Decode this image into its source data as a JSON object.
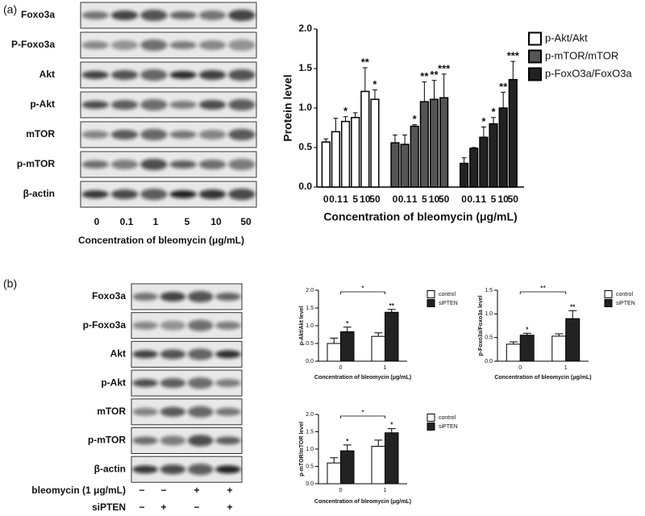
{
  "panel_a": {
    "label": "(a)",
    "blot_labels": [
      "Foxo3a",
      "P-Foxo3a",
      "Akt",
      "p-Akt",
      "mTOR",
      "p-mTOR",
      "β-actin"
    ],
    "lanes": [
      "0",
      "0.1",
      "1",
      "5",
      "10",
      "50"
    ],
    "x_label": "Concentration of bleomycin (μg/mL)"
  },
  "panel_b": {
    "label": "(b)",
    "blot_labels": [
      "Foxo3a",
      "p-Foxo3a",
      "Akt",
      "p-Akt",
      "mTOR",
      "p-mTOR",
      "β-actin"
    ],
    "conditions": [
      {
        "name": "bleomycin (1 μg/mL)",
        "marks": [
          "−",
          "−",
          "+",
          "+"
        ]
      },
      {
        "name": "siPTEN",
        "marks": [
          "−",
          "+",
          "−",
          "+"
        ]
      }
    ]
  },
  "chart_data": [
    {
      "type": "bar",
      "group_by": "series",
      "y_label": "Protein level",
      "x_label": "Concentration of bleomycin (μg/mL)",
      "categories": [
        "0",
        "0.1",
        "1",
        "5",
        "10",
        "50"
      ],
      "ylim": [
        0,
        2
      ],
      "yticks": [
        {
          "value": 0,
          "label": "0.0"
        },
        {
          "value": 0.5,
          "label": "0.5"
        },
        {
          "value": 1,
          "label": "1.0"
        },
        {
          "value": 1.5,
          "label": "1.5"
        },
        {
          "value": 2,
          "label": "2.0"
        }
      ],
      "legend": "right",
      "series": [
        {
          "name": "p-Akt/Akt",
          "color": "#ffffff",
          "values": [
            0.57,
            0.7,
            0.83,
            0.88,
            1.21,
            1.11
          ],
          "errors": [
            0.04,
            0.17,
            0.06,
            0.06,
            0.3,
            0.12
          ],
          "annotations": [
            null,
            null,
            "*",
            null,
            "**",
            "*"
          ]
        },
        {
          "name": "p-mTOR/mTOR",
          "color": "#555555",
          "values": [
            0.56,
            0.54,
            0.77,
            1.08,
            1.11,
            1.13
          ],
          "errors": [
            0.1,
            0.12,
            0.02,
            0.25,
            0.24,
            0.3
          ],
          "annotations": [
            null,
            null,
            "*",
            "**",
            "**",
            "***"
          ]
        },
        {
          "name": "p-FoxO3a/FoxO3a",
          "color": "#222222",
          "values": [
            0.3,
            0.49,
            0.63,
            0.8,
            1.0,
            1.36
          ],
          "errors": [
            0.07,
            0.01,
            0.13,
            0.08,
            0.2,
            0.23
          ],
          "annotations": [
            null,
            null,
            "*",
            "*",
            "**",
            "***"
          ]
        }
      ]
    },
    {
      "type": "bar",
      "group_by": "category",
      "y_label": "p-Akt/Akt level",
      "x_label": "Concentration of bleomycin (μg/mL)",
      "categories": [
        "0",
        "1"
      ],
      "ylim": [
        0,
        2
      ],
      "yticks": [
        {
          "value": 0,
          "label": "0.0"
        },
        {
          "value": 0.5,
          "label": "0.5"
        },
        {
          "value": 1,
          "label": "1.0"
        },
        {
          "value": 1.5,
          "label": "1.5"
        },
        {
          "value": 2,
          "label": "2.0"
        }
      ],
      "legend": "right",
      "bracket_label": "*",
      "series": [
        {
          "name": "control",
          "color": "#ffffff",
          "values": [
            0.5,
            0.7
          ],
          "errors": [
            0.15,
            0.1
          ],
          "annotations": [
            null,
            null
          ]
        },
        {
          "name": "siPTEN",
          "color": "#222222",
          "values": [
            0.83,
            1.38
          ],
          "errors": [
            0.13,
            0.08
          ],
          "annotations": [
            "*",
            "**"
          ]
        }
      ]
    },
    {
      "type": "bar",
      "group_by": "category",
      "y_label": "p-Foxo3a/Foxo3a level",
      "x_label": "Concentration of bleomycin (μg/mL)",
      "categories": [
        "0",
        "1"
      ],
      "ylim": [
        0,
        1.5
      ],
      "yticks": [
        {
          "value": 0,
          "label": "0.0"
        },
        {
          "value": 0.5,
          "label": "0.5"
        },
        {
          "value": 1,
          "label": "1.0"
        },
        {
          "value": 1.5,
          "label": "1.5"
        }
      ],
      "legend": "right",
      "bracket_label": "**",
      "series": [
        {
          "name": "control",
          "color": "#ffffff",
          "values": [
            0.36,
            0.53
          ],
          "errors": [
            0.05,
            0.05
          ],
          "annotations": [
            null,
            null
          ]
        },
        {
          "name": "siPTEN",
          "color": "#222222",
          "values": [
            0.55,
            0.9
          ],
          "errors": [
            0.04,
            0.17
          ],
          "annotations": [
            "*",
            "**"
          ]
        }
      ]
    },
    {
      "type": "bar",
      "group_by": "category",
      "y_label": "p-mTOR/mTOR level",
      "x_label": "Concentration of bleomycin (μg/mL)",
      "categories": [
        "0",
        "1"
      ],
      "ylim": [
        0,
        2
      ],
      "yticks": [
        {
          "value": 0,
          "label": "0.0"
        },
        {
          "value": 0.5,
          "label": "0.5"
        },
        {
          "value": 1,
          "label": "1.0"
        },
        {
          "value": 1.5,
          "label": "1.5"
        },
        {
          "value": 2,
          "label": "2.0"
        }
      ],
      "legend": "right",
      "bracket_label": "*",
      "series": [
        {
          "name": "control",
          "color": "#ffffff",
          "values": [
            0.6,
            1.08
          ],
          "errors": [
            0.15,
            0.18
          ],
          "annotations": [
            null,
            null
          ]
        },
        {
          "name": "siPTEN",
          "color": "#222222",
          "values": [
            0.95,
            1.47
          ],
          "errors": [
            0.17,
            0.12
          ],
          "annotations": [
            "*",
            "*"
          ]
        }
      ]
    }
  ]
}
